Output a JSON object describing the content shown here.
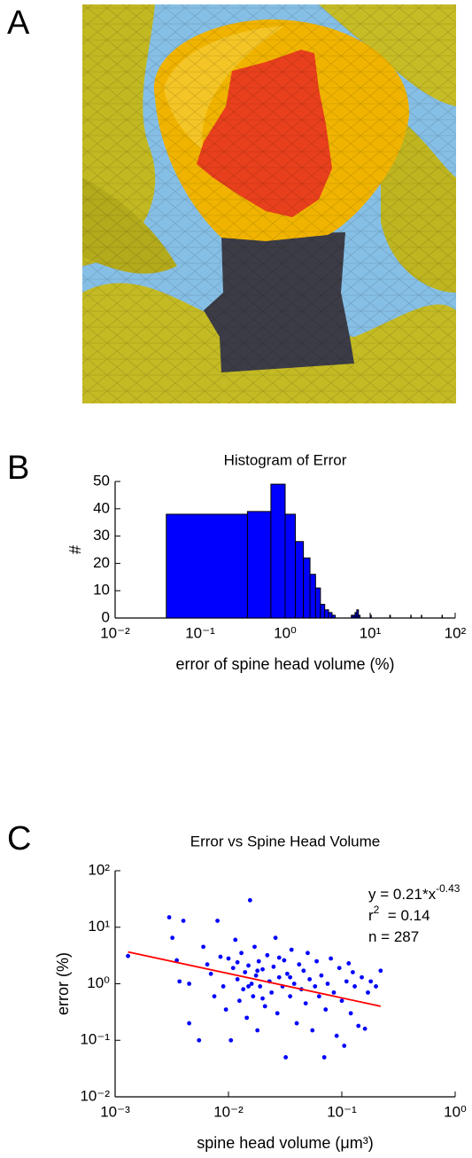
{
  "panels": [
    "A",
    "B",
    "C"
  ],
  "chart_data": [
    {
      "type": "histogram",
      "title": "Histogram of Error",
      "xlabel": "error of spine head volume (%)",
      "ylabel": "#",
      "xscale": "log",
      "color": "#0000ff",
      "bins": [
        0.04,
        0.36,
        0.68,
        1.0,
        1.32,
        1.64,
        1.96,
        2.28,
        2.6,
        2.92,
        3.24,
        3.56,
        3.88,
        6.0,
        6.32,
        6.64,
        6.96,
        7.28,
        7.6,
        10.0,
        10.32,
        17.0,
        17.32,
        30.0,
        30.32,
        40.0,
        40.32,
        70.0,
        70.32
      ],
      "counts": [
        38,
        39,
        49,
        38,
        28,
        22,
        16,
        11,
        5,
        3,
        2,
        1,
        0,
        1,
        1,
        2,
        3,
        1,
        0,
        1,
        0,
        1,
        0,
        1,
        0,
        1,
        0,
        1
      ],
      "xlim": [
        0.01,
        100
      ],
      "xticks": [
        {
          "value": 0.01,
          "label": "10⁻²"
        },
        {
          "value": 0.1,
          "label": "10⁻¹"
        },
        {
          "value": 1,
          "label": "10⁰"
        },
        {
          "value": 10,
          "label": "10¹"
        },
        {
          "value": 100,
          "label": "10²"
        }
      ],
      "ylim": [
        0,
        50
      ],
      "yticks": [
        0,
        10,
        20,
        30,
        40,
        50
      ]
    },
    {
      "type": "scatter",
      "title": "Error vs Spine Head Volume",
      "xlabel": "spine head volume (μm³)",
      "ylabel": "error (%)",
      "xscale": "log",
      "yscale": "log",
      "color": "#0000ff",
      "x": [
        0.0013,
        0.003,
        0.0032,
        0.0035,
        0.0037,
        0.004,
        0.0045,
        0.0055,
        0.006,
        0.0065,
        0.007,
        0.0075,
        0.008,
        0.0085,
        0.009,
        0.0095,
        0.01,
        0.0105,
        0.011,
        0.0115,
        0.012,
        0.0125,
        0.013,
        0.0135,
        0.014,
        0.0145,
        0.015,
        0.0155,
        0.016,
        0.0165,
        0.017,
        0.0175,
        0.018,
        0.0185,
        0.019,
        0.02,
        0.021,
        0.022,
        0.023,
        0.024,
        0.025,
        0.026,
        0.027,
        0.028,
        0.03,
        0.031,
        0.032,
        0.033,
        0.035,
        0.036,
        0.038,
        0.04,
        0.042,
        0.044,
        0.046,
        0.048,
        0.05,
        0.052,
        0.055,
        0.058,
        0.06,
        0.063,
        0.066,
        0.07,
        0.072,
        0.075,
        0.08,
        0.085,
        0.09,
        0.095,
        0.1,
        0.105,
        0.11,
        0.115,
        0.12,
        0.125,
        0.13,
        0.14,
        0.15,
        0.16,
        0.17,
        0.18,
        0.2,
        0.22,
        0.0045,
        0.015,
        0.02,
        0.028,
        0.012,
        0.018,
        0.035
      ],
      "values": [
        3.1,
        15,
        6.5,
        2.6,
        1.1,
        13,
        0.2,
        0.1,
        4.5,
        2.2,
        1.5,
        0.6,
        13,
        3,
        0.9,
        0.35,
        2.8,
        0.1,
        1.9,
        6,
        1.2,
        0.5,
        3.5,
        0.8,
        1.6,
        0.25,
        2.1,
        30,
        1.0,
        0.6,
        4.5,
        1.4,
        0.15,
        2.5,
        0.9,
        1.8,
        0.4,
        3.2,
        1.1,
        0.7,
        2.0,
        6.5,
        0.3,
        1.3,
        0.9,
        2.6,
        0.05,
        1.5,
        0.6,
        4,
        1.0,
        0.2,
        2.2,
        0.8,
        1.7,
        0.45,
        3.5,
        1.2,
        0.15,
        0.9,
        2.5,
        0.6,
        1.4,
        0.05,
        0.35,
        1.0,
        2.8,
        0.7,
        0.12,
        1.9,
        0.5,
        0.08,
        1.1,
        2.3,
        0.3,
        1.6,
        0.9,
        0.18,
        1.3,
        0.16,
        0.7,
        1.1,
        0.9,
        1.7,
        1.0,
        0.9,
        0.55,
        2.9,
        2.4,
        1.7,
        1.3
      ],
      "fit": {
        "color": "#ff0000",
        "x": [
          0.0013,
          0.22
        ],
        "values": [
          3.66,
          0.4
        ]
      },
      "annotations": [
        {
          "text": "y = 0.21*x",
          "sup": "-0.43"
        },
        {
          "text": "r",
          "sup": "2",
          "tail": "  = 0.14"
        },
        {
          "text": "n = 287"
        }
      ],
      "xlim": [
        0.001,
        1
      ],
      "xticks": [
        {
          "value": 0.001,
          "label": "10⁻³"
        },
        {
          "value": 0.01,
          "label": "10⁻²"
        },
        {
          "value": 0.1,
          "label": "10⁻¹"
        },
        {
          "value": 1,
          "label": "10⁰"
        }
      ],
      "ylim": [
        0.01,
        100
      ],
      "yticks": [
        {
          "value": 0.01,
          "label": "10⁻²"
        },
        {
          "value": 0.1,
          "label": "10⁻¹"
        },
        {
          "value": 1,
          "label": "10⁰"
        },
        {
          "value": 10,
          "label": "10¹"
        },
        {
          "value": 100,
          "label": "10²"
        }
      ]
    }
  ]
}
